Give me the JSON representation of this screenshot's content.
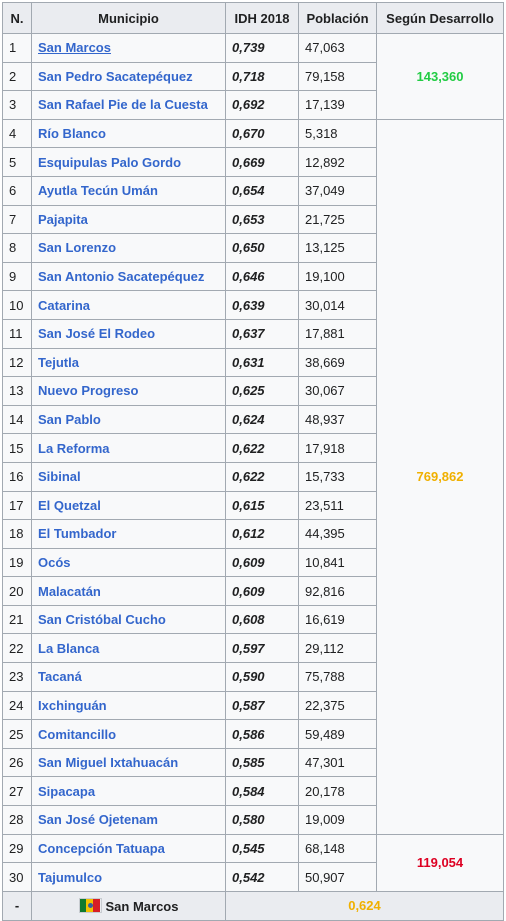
{
  "headers": {
    "n": "N.",
    "municipio": "Municipio",
    "idh": "IDH 2018",
    "poblacion": "Población",
    "desarrollo": "Según Desarrollo"
  },
  "rows": [
    {
      "n": "1",
      "municipio": "San Marcos",
      "idh": "0,739",
      "poblacion": "47,063"
    },
    {
      "n": "2",
      "municipio": "San Pedro Sacatepéquez",
      "idh": "0,718",
      "poblacion": "79,158"
    },
    {
      "n": "3",
      "municipio": "San Rafael Pie de la Cuesta",
      "idh": "0,692",
      "poblacion": "17,139"
    },
    {
      "n": "4",
      "municipio": "Río Blanco",
      "idh": "0,670",
      "poblacion": "5,318"
    },
    {
      "n": "5",
      "municipio": "Esquipulas Palo Gordo",
      "idh": "0,669",
      "poblacion": "12,892"
    },
    {
      "n": "6",
      "municipio": "Ayutla Tecún Umán",
      "idh": "0,654",
      "poblacion": "37,049"
    },
    {
      "n": "7",
      "municipio": "Pajapita",
      "idh": "0,653",
      "poblacion": "21,725"
    },
    {
      "n": "8",
      "municipio": "San Lorenzo",
      "idh": "0,650",
      "poblacion": "13,125"
    },
    {
      "n": "9",
      "municipio": "San Antonio Sacatepéquez",
      "idh": "0,646",
      "poblacion": "19,100"
    },
    {
      "n": "10",
      "municipio": "Catarina",
      "idh": "0,639",
      "poblacion": "30,014"
    },
    {
      "n": "11",
      "municipio": "San José El Rodeo",
      "idh": "0,637",
      "poblacion": "17,881"
    },
    {
      "n": "12",
      "municipio": "Tejutla",
      "idh": "0,631",
      "poblacion": "38,669"
    },
    {
      "n": "13",
      "municipio": "Nuevo Progreso",
      "idh": "0,625",
      "poblacion": "30,067"
    },
    {
      "n": "14",
      "municipio": "San Pablo",
      "idh": "0,624",
      "poblacion": "48,937"
    },
    {
      "n": "15",
      "municipio": "La Reforma",
      "idh": "0,622",
      "poblacion": "17,918"
    },
    {
      "n": "16",
      "municipio": "Sibinal",
      "idh": "0,622",
      "poblacion": "15,733"
    },
    {
      "n": "17",
      "municipio": "El Quetzal",
      "idh": "0,615",
      "poblacion": "23,511"
    },
    {
      "n": "18",
      "municipio": "El Tumbador",
      "idh": "0,612",
      "poblacion": "44,395"
    },
    {
      "n": "19",
      "municipio": "Ocós",
      "idh": "0,609",
      "poblacion": "10,841"
    },
    {
      "n": "20",
      "municipio": "Malacatán",
      "idh": "0,609",
      "poblacion": "92,816"
    },
    {
      "n": "21",
      "municipio": "San Cristóbal Cucho",
      "idh": "0,608",
      "poblacion": "16,619"
    },
    {
      "n": "22",
      "municipio": "La Blanca",
      "idh": "0,597",
      "poblacion": "29,112"
    },
    {
      "n": "23",
      "municipio": "Tacaná",
      "idh": "0,590",
      "poblacion": "75,788"
    },
    {
      "n": "24",
      "municipio": "Ixchinguán",
      "idh": "0,587",
      "poblacion": "22,375"
    },
    {
      "n": "25",
      "municipio": "Comitancillo",
      "idh": "0,586",
      "poblacion": "59,489"
    },
    {
      "n": "26",
      "municipio": "San Miguel Ixtahuacán",
      "idh": "0,585",
      "poblacion": "47,301"
    },
    {
      "n": "27",
      "municipio": "Sipacapa",
      "idh": "0,584",
      "poblacion": "20,178"
    },
    {
      "n": "28",
      "municipio": "San José Ojetenam",
      "idh": "0,580",
      "poblacion": "19,009"
    },
    {
      "n": "29",
      "municipio": "Concepción Tatuapa",
      "idh": "0,545",
      "poblacion": "68,148"
    },
    {
      "n": "30",
      "municipio": "Tajumulco",
      "idh": "0,542",
      "poblacion": "50,907"
    }
  ],
  "groups": [
    {
      "value": "143,360",
      "color": "#22cc44"
    },
    {
      "value": "769,862",
      "color": "#f0b000"
    },
    {
      "value": "119,054",
      "color": "#dd0022"
    }
  ],
  "footer": {
    "n": "-",
    "department": "San Marcos",
    "idh": "0,624",
    "flag_icon": "guatemala-flag-icon"
  }
}
